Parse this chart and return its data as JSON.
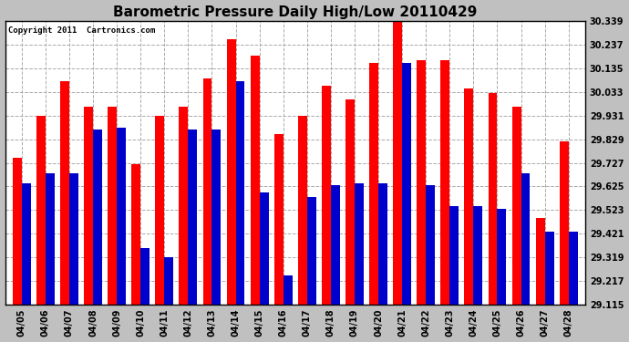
{
  "title": "Barometric Pressure Daily High/Low 20110429",
  "copyright": "Copyright 2011  Cartronics.com",
  "dates": [
    "04/05",
    "04/06",
    "04/07",
    "04/08",
    "04/09",
    "04/10",
    "04/11",
    "04/12",
    "04/13",
    "04/14",
    "04/15",
    "04/16",
    "04/17",
    "04/18",
    "04/19",
    "04/20",
    "04/21",
    "04/22",
    "04/23",
    "04/24",
    "04/25",
    "04/26",
    "04/27",
    "04/28"
  ],
  "highs": [
    29.75,
    29.93,
    30.08,
    29.97,
    29.97,
    29.72,
    29.93,
    29.97,
    30.09,
    30.26,
    30.19,
    29.85,
    29.93,
    30.06,
    30.0,
    30.16,
    30.37,
    30.17,
    30.17,
    30.05,
    30.03,
    29.97,
    29.49,
    29.82
  ],
  "lows": [
    29.64,
    29.68,
    29.68,
    29.87,
    29.88,
    29.36,
    29.32,
    29.87,
    29.87,
    30.08,
    29.6,
    29.24,
    29.58,
    29.63,
    29.64,
    29.64,
    30.16,
    29.63,
    29.54,
    29.54,
    29.53,
    29.68,
    29.43,
    29.43
  ],
  "high_color": "#FF0000",
  "low_color": "#0000CC",
  "outer_bg_color": "#C0C0C0",
  "plot_bg_color": "#FFFFFF",
  "ylim_min": 29.115,
  "ylim_max": 30.339,
  "yticks": [
    29.115,
    29.217,
    29.319,
    29.421,
    29.523,
    29.625,
    29.727,
    29.829,
    29.931,
    30.033,
    30.135,
    30.237,
    30.339
  ],
  "bar_width": 0.38,
  "title_fontsize": 11,
  "tick_fontsize": 7,
  "copyright_fontsize": 6.5
}
